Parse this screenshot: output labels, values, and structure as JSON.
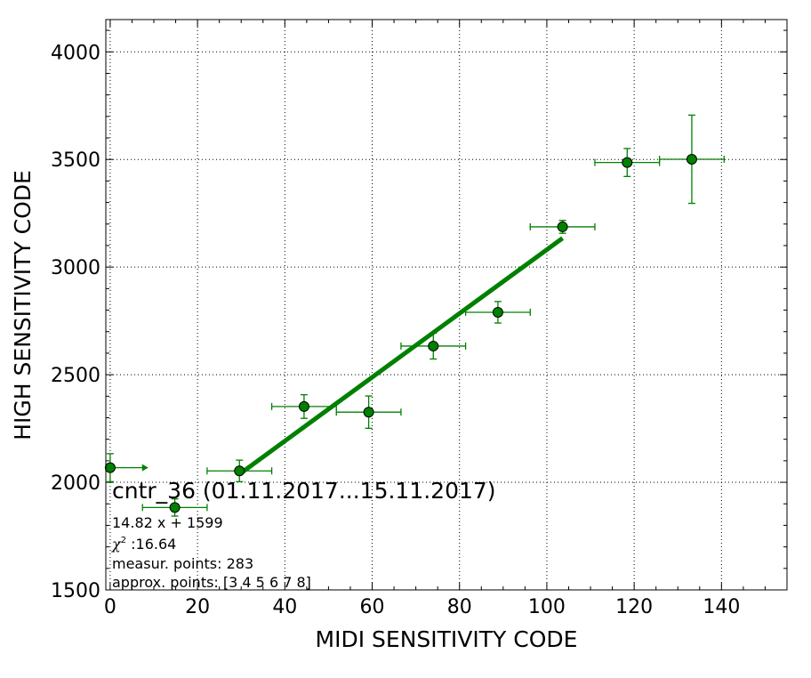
{
  "chart_data": {
    "type": "scatter",
    "xlabel": "MIDI SENSITIVITY CODE",
    "ylabel": "HIGH SENSITIVITY CODE",
    "xlim": [
      -1,
      155
    ],
    "ylim": [
      1500,
      4150
    ],
    "x_ticks": [
      0,
      20,
      40,
      60,
      80,
      100,
      120,
      140
    ],
    "y_ticks": [
      1500,
      2000,
      2500,
      3000,
      3500,
      4000
    ],
    "grid": true,
    "colors": {
      "points": "#008000",
      "fit_line": "#008000",
      "point_edge": "#000000"
    },
    "points": [
      {
        "x": 0,
        "y": 2068,
        "xerr_low": 0,
        "xerr_high": 7.5,
        "yerr": 65,
        "x_arrow": "right"
      },
      {
        "x": 14.8,
        "y": 1883,
        "xerr_low": 7.4,
        "xerr_high": 7.4,
        "yerr": 40
      },
      {
        "x": 29.6,
        "y": 2053,
        "xerr_low": 7.4,
        "xerr_high": 7.4,
        "yerr": 50
      },
      {
        "x": 44.4,
        "y": 2352,
        "xerr_low": 7.4,
        "xerr_high": 7.4,
        "yerr": 55
      },
      {
        "x": 59.2,
        "y": 2326,
        "xerr_low": 7.4,
        "xerr_high": 7.4,
        "yerr": 75
      },
      {
        "x": 74.0,
        "y": 2633,
        "xerr_low": 7.4,
        "xerr_high": 7.4,
        "yerr": 60
      },
      {
        "x": 88.8,
        "y": 2790,
        "xerr_low": 7.4,
        "xerr_high": 7.4,
        "yerr": 50
      },
      {
        "x": 103.6,
        "y": 3187,
        "xerr_low": 7.4,
        "xerr_high": 7.4,
        "yerr": 30
      },
      {
        "x": 118.4,
        "y": 3486,
        "xerr_low": 7.4,
        "xerr_high": 7.4,
        "yerr": 65
      },
      {
        "x": 133.2,
        "y": 3501,
        "xerr_low": 7.4,
        "xerr_high": 7.4,
        "yerr": 205
      }
    ],
    "fit": {
      "slope": 14.82,
      "intercept": 1599,
      "x_start": 29.6,
      "x_end": 103.6
    },
    "annotations": {
      "title": "cntr_36 (01.11.2017...15.11.2017)",
      "equation": "14.82 x + 1599",
      "chi2_symbol": "χ",
      "chi2_sup": "2",
      "chi2_value": " :16.64",
      "measur_points": "measur. points: 283",
      "approx_points": "approx. points: [3 4 5 6 7 8]"
    }
  }
}
